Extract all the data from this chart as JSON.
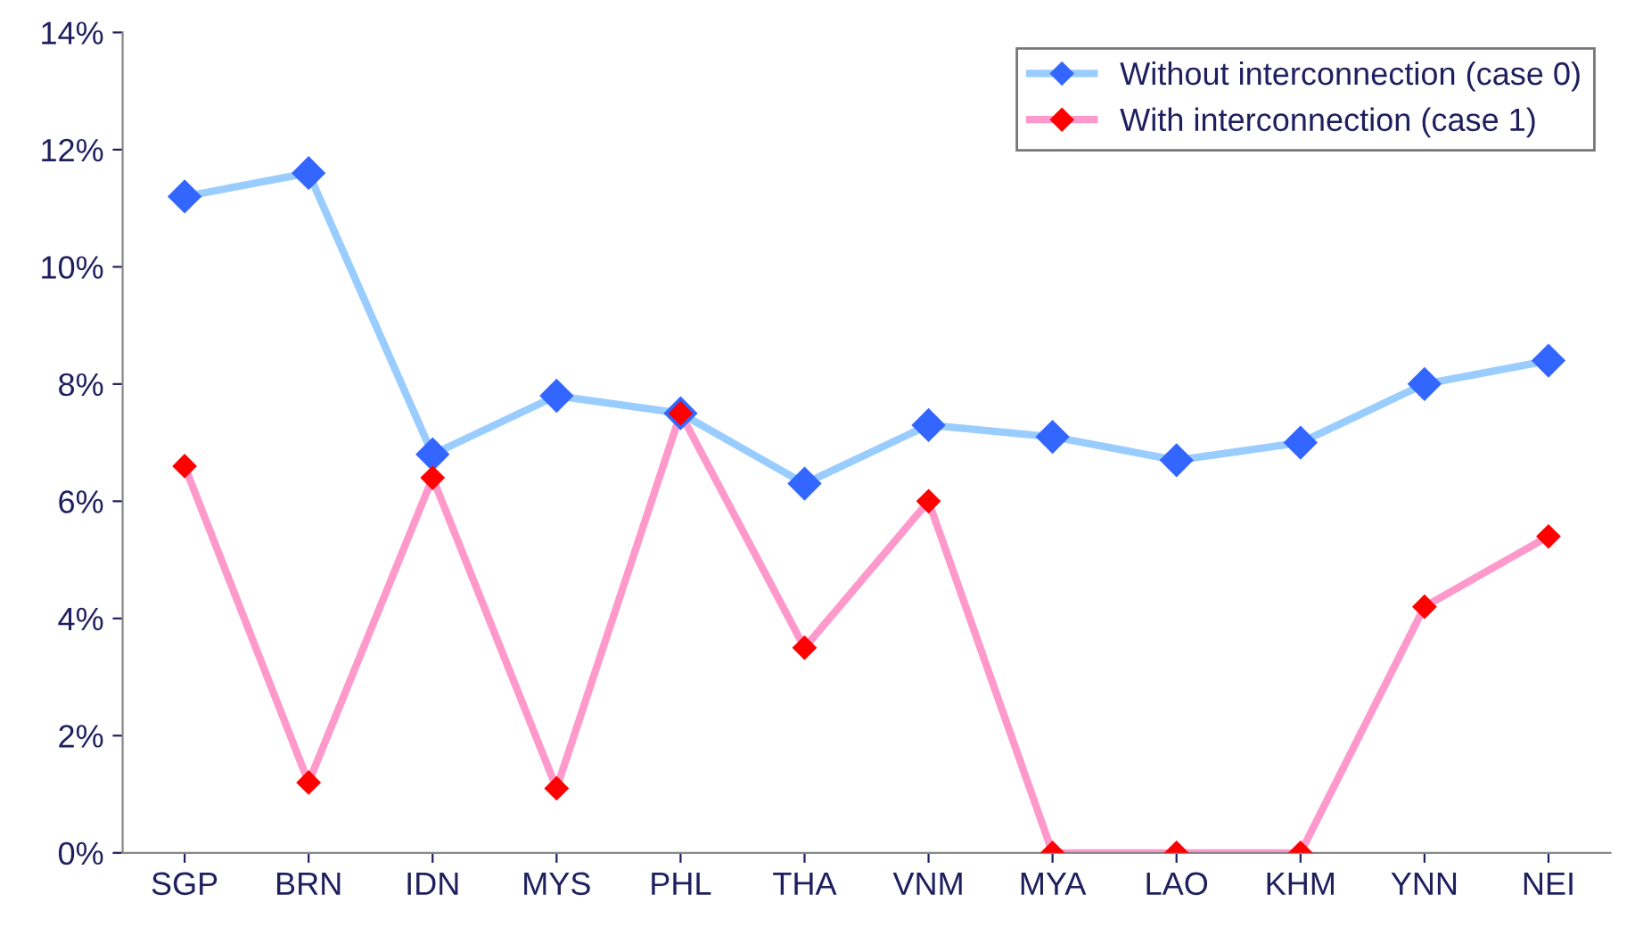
{
  "chart_data": {
    "type": "line",
    "categories": [
      "SGP",
      "BRN",
      "IDN",
      "MYS",
      "PHL",
      "THA",
      "VNM",
      "MYA",
      "LAO",
      "KHM",
      "YNN",
      "NEI"
    ],
    "series": [
      {
        "name": "Without interconnection (case 0)",
        "color": "#99ccff",
        "colors": [
          "#3366ff",
          "#3366ff",
          "#3366ff",
          "#3366ff",
          "#3366ff",
          "#3366ff",
          "#3366ff",
          "#3366ff",
          "#3366ff",
          "#3366ff",
          "#3366ff",
          "#3366ff"
        ],
        "values": [
          11.2,
          11.6,
          6.8,
          7.8,
          7.5,
          6.3,
          7.3,
          7.1,
          6.7,
          7.0,
          8.0,
          8.4
        ]
      },
      {
        "name": "With interconnection (case 1)",
        "color": "#ff99cc",
        "colors": [
          "#ff0000",
          "#ff0000",
          "#ff0000",
          "#ff0000",
          "#ff0000",
          "#ff0000",
          "#ff0000",
          "#ff0000",
          "#ff0000",
          "#ff0000",
          "#ff0000",
          "#ff0000"
        ],
        "values": [
          6.6,
          1.2,
          6.4,
          1.1,
          7.5,
          3.5,
          6.0,
          0,
          0,
          0,
          4.2,
          5.4
        ]
      }
    ],
    "ylim": [
      0,
      14
    ],
    "yticks": [
      {
        "value": 0,
        "label": "0%"
      },
      {
        "value": 2,
        "label": "2%"
      },
      {
        "value": 4,
        "label": "4%"
      },
      {
        "value": 6,
        "label": "6%"
      },
      {
        "value": 8,
        "label": "8%"
      },
      {
        "value": 10,
        "label": "10%"
      },
      {
        "value": 12,
        "label": "12%"
      },
      {
        "value": 14,
        "label": "14%"
      }
    ],
    "grid": false,
    "legend": "top right",
    "marker": "diamond",
    "line_style": "solid"
  }
}
